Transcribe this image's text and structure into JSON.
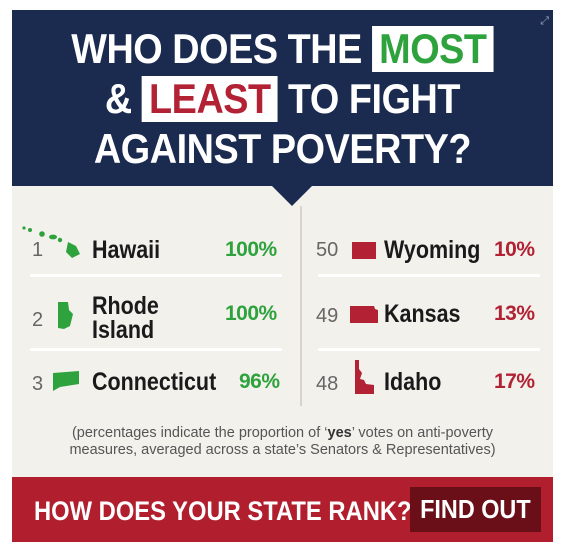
{
  "headline": {
    "line1_prefix": "WHO DOES THE",
    "most": "MOST",
    "line2_prefix": "&",
    "least": "LEAST",
    "line2_suffix": "TO FIGHT",
    "line3": "AGAINST POVERTY?"
  },
  "most": [
    {
      "rank": "1",
      "state": "Hawaii",
      "percent": "100%",
      "icon": "hawaii-icon"
    },
    {
      "rank": "2",
      "state_line1": "Rhode",
      "state_line2": "Island",
      "percent": "100%",
      "icon": "rhode-island-icon"
    },
    {
      "rank": "3",
      "state": "Connecticut",
      "percent": "96%",
      "icon": "connecticut-icon"
    }
  ],
  "least": [
    {
      "rank": "50",
      "state": "Wyoming",
      "percent": "10%",
      "icon": "wyoming-icon"
    },
    {
      "rank": "49",
      "state": "Kansas",
      "percent": "13%",
      "icon": "kansas-icon"
    },
    {
      "rank": "48",
      "state": "Idaho",
      "percent": "17%",
      "icon": "idaho-icon"
    }
  ],
  "footnote": {
    "before": "(percentages indicate the proportion of ‘",
    "yes": "yes",
    "after": "’ votes on anti-poverty",
    "line2": "measures, averaged across a state’s Senators & Representatives)"
  },
  "cta": {
    "text": "HOW DOES YOUR STATE RANK?",
    "button": "FIND OUT"
  },
  "colors": {
    "navy": "#1b2b4f",
    "green": "#2ea23c",
    "red": "#b22234",
    "footer": "#b11f2e",
    "button": "#6a0f18"
  }
}
